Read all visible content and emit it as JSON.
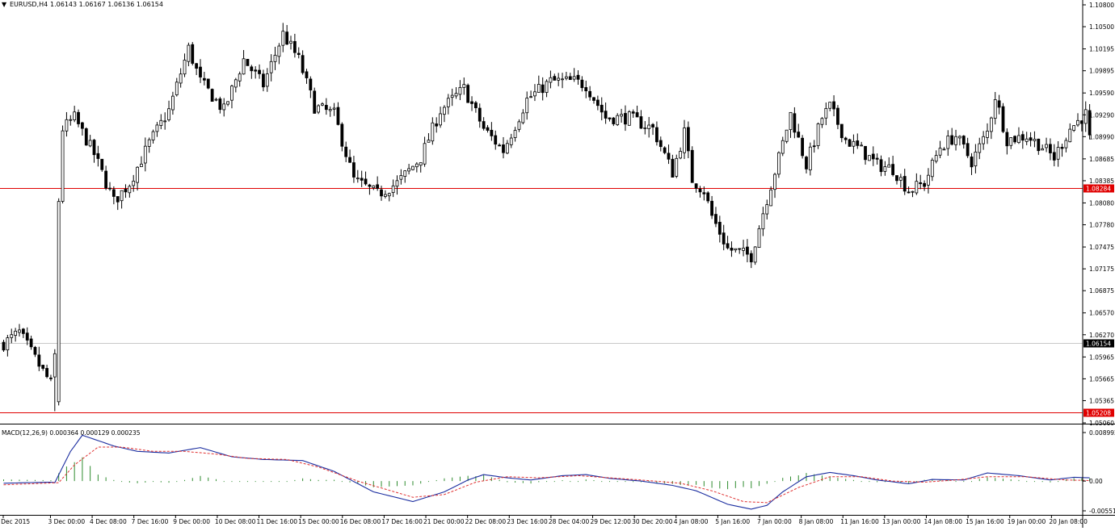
{
  "header": {
    "symbol": "EURUSD,H4",
    "ohlc": "1.06143 1.06167 1.06136 1.06154"
  },
  "macd": {
    "label": "MACD(12,26,9) 0.000364 0.000129 0.000235"
  },
  "colors": {
    "background": "#ffffff",
    "candle_up_fill": "#ffffff",
    "candle_down_fill": "#000000",
    "candle_outline": "#000000",
    "hline_red": "#e00000",
    "hline_grey": "#c8c8c8",
    "macd_line": "#1c2ea0",
    "signal_line": "#e03030",
    "histogram": "#2e8b2e",
    "label_red_bg": "#e00000",
    "label_black_bg": "#000000"
  },
  "chart_data": [
    {
      "type": "candlestick",
      "ylim": [
        1.0506,
        1.108
      ],
      "price_ticks": [
        "1.10800",
        "1.10500",
        "1.10195",
        "1.09895",
        "1.09590",
        "1.09290",
        "1.08990",
        "1.08685",
        "1.08385",
        "1.08080",
        "1.07780",
        "1.07475",
        "1.07175",
        "1.06875",
        "1.06570",
        "1.06270",
        "1.05965",
        "1.05665",
        "1.05365",
        "1.05060"
      ],
      "time_labels": [
        "1 Dec 2015",
        "3 Dec 00:00",
        "4 Dec 08:00",
        "7 Dec 16:00",
        "9 Dec 00:00",
        "10 Dec 08:00",
        "11 Dec 16:00",
        "15 Dec 00:00",
        "16 Dec 08:00",
        "17 Dec 16:00",
        "21 Dec 00:00",
        "22 Dec 08:00",
        "23 Dec 16:00",
        "28 Dec 04:00",
        "29 Dec 12:00",
        "30 Dec 20:00",
        "4 Jan 08:00",
        "5 Jan 16:00",
        "7 Jan 00:00",
        "8 Jan 08:00",
        "11 Jan 16:00",
        "13 Jan 00:00",
        "14 Jan 08:00",
        "15 Jan 16:00",
        "19 Jan 00:00",
        "20 Jan 08:00"
      ],
      "hlines": [
        {
          "price": 1.08284,
          "label": "1.08284",
          "kind": "red"
        },
        {
          "price": 1.06154,
          "label": "1.06154",
          "kind": "current"
        },
        {
          "price": 1.05208,
          "label": "1.05208",
          "kind": "red"
        }
      ],
      "anchors": [
        [
          0,
          1.0615
        ],
        [
          4,
          1.063
        ],
        [
          9,
          1.0585
        ],
        [
          12,
          1.056
        ],
        [
          13,
          1.0598
        ],
        [
          14,
          1.0805
        ],
        [
          15,
          1.091
        ],
        [
          18,
          1.0925
        ],
        [
          23,
          1.0875
        ],
        [
          28,
          1.081
        ],
        [
          32,
          1.0835
        ],
        [
          37,
          1.089
        ],
        [
          42,
          1.0935
        ],
        [
          47,
          1.102
        ],
        [
          50,
          1.0975
        ],
        [
          56,
          1.0935
        ],
        [
          61,
          1.1005
        ],
        [
          66,
          1.097
        ],
        [
          71,
          1.104
        ],
        [
          75,
          1.1005
        ],
        [
          79,
          1.094
        ],
        [
          84,
          1.093
        ],
        [
          89,
          1.084
        ],
        [
          95,
          1.082
        ],
        [
          100,
          1.0835
        ],
        [
          106,
          1.087
        ],
        [
          111,
          1.0935
        ],
        [
          117,
          1.0965
        ],
        [
          122,
          1.091
        ],
        [
          127,
          1.088
        ],
        [
          133,
          1.095
        ],
        [
          139,
          1.0975
        ],
        [
          145,
          1.0975
        ],
        [
          148,
          1.097
        ],
        [
          153,
          1.0925
        ],
        [
          159,
          1.0925
        ],
        [
          165,
          1.091
        ],
        [
          170,
          1.085
        ],
        [
          173,
          1.0905
        ],
        [
          175,
          1.084
        ],
        [
          178,
          1.0825
        ],
        [
          180,
          1.079
        ],
        [
          184,
          1.0745
        ],
        [
          190,
          1.0735
        ],
        [
          193,
          1.0795
        ],
        [
          197,
          1.087
        ],
        [
          200,
          1.093
        ],
        [
          204,
          1.086
        ],
        [
          208,
          1.0925
        ],
        [
          210,
          1.094
        ],
        [
          214,
          1.0895
        ],
        [
          218,
          1.088
        ],
        [
          222,
          1.086
        ],
        [
          226,
          1.0855
        ],
        [
          230,
          1.0825
        ],
        [
          234,
          1.0835
        ],
        [
          238,
          1.0885
        ],
        [
          242,
          1.09
        ],
        [
          246,
          1.0865
        ],
        [
          250,
          1.0905
        ],
        [
          252,
          1.0955
        ],
        [
          255,
          1.0895
        ],
        [
          260,
          1.09
        ],
        [
          264,
          1.0885
        ],
        [
          267,
          1.087
        ],
        [
          271,
          1.091
        ],
        [
          275,
          1.093
        ],
        [
          276,
          1.0895
        ]
      ]
    },
    {
      "type": "line",
      "title": "MACD(12,26,9) 0.000364 0.000129 0.000235",
      "ylim": [
        -0.005516,
        0.008992
      ],
      "yticks": [
        "0.008992",
        "0.00",
        "-0.005516"
      ],
      "series": [
        {
          "role": "macd",
          "anchors": [
            [
              0,
              -0.0004
            ],
            [
              12,
              -0.0002
            ],
            [
              13,
              -0.0003
            ],
            [
              17,
              0.0055
            ],
            [
              20,
              0.0085
            ],
            [
              28,
              0.0065
            ],
            [
              34,
              0.0055
            ],
            [
              42,
              0.0052
            ],
            [
              50,
              0.0062
            ],
            [
              58,
              0.0045
            ],
            [
              66,
              0.004
            ],
            [
              76,
              0.0038
            ],
            [
              84,
              0.0018
            ],
            [
              94,
              -0.002
            ],
            [
              104,
              -0.0038
            ],
            [
              112,
              -0.002
            ],
            [
              118,
              0.0002
            ],
            [
              122,
              0.0012
            ],
            [
              128,
              0.0006
            ],
            [
              134,
              0.0002
            ],
            [
              142,
              0.001
            ],
            [
              148,
              0.0012
            ],
            [
              154,
              0.0005
            ],
            [
              162,
              0.0
            ],
            [
              170,
              -0.0008
            ],
            [
              176,
              -0.0018
            ],
            [
              184,
              -0.0043
            ],
            [
              190,
              -0.0052
            ],
            [
              194,
              -0.0045
            ],
            [
              198,
              -0.002
            ],
            [
              204,
              0.0008
            ],
            [
              210,
              0.0016
            ],
            [
              216,
              0.001
            ],
            [
              222,
              0.0002
            ],
            [
              230,
              -0.0005
            ],
            [
              236,
              0.0003
            ],
            [
              244,
              0.0002
            ],
            [
              250,
              0.0015
            ],
            [
              258,
              0.001
            ],
            [
              266,
              0.0002
            ],
            [
              272,
              0.0007
            ],
            [
              276,
              0.0006
            ]
          ]
        },
        {
          "role": "signal",
          "anchors": [
            [
              0,
              -0.0007
            ],
            [
              14,
              -0.0003
            ],
            [
              18,
              0.003
            ],
            [
              24,
              0.0063
            ],
            [
              30,
              0.0063
            ],
            [
              38,
              0.0055
            ],
            [
              46,
              0.0055
            ],
            [
              54,
              0.005
            ],
            [
              62,
              0.0042
            ],
            [
              72,
              0.004
            ],
            [
              80,
              0.0026
            ],
            [
              90,
              0.0
            ],
            [
              104,
              -0.003
            ],
            [
              112,
              -0.0025
            ],
            [
              120,
              -0.0002
            ],
            [
              128,
              0.0008
            ],
            [
              136,
              0.0006
            ],
            [
              146,
              0.001
            ],
            [
              154,
              0.0006
            ],
            [
              162,
              0.0002
            ],
            [
              172,
              -0.0004
            ],
            [
              180,
              -0.0018
            ],
            [
              188,
              -0.0038
            ],
            [
              194,
              -0.004
            ],
            [
              202,
              -0.0012
            ],
            [
              210,
              0.0008
            ],
            [
              218,
              0.0008
            ],
            [
              226,
              0.0
            ],
            [
              234,
              -0.0002
            ],
            [
              242,
              0.0002
            ],
            [
              250,
              0.0008
            ],
            [
              260,
              0.0008
            ],
            [
              270,
              0.0002
            ],
            [
              276,
              0.0001
            ]
          ]
        }
      ]
    }
  ]
}
